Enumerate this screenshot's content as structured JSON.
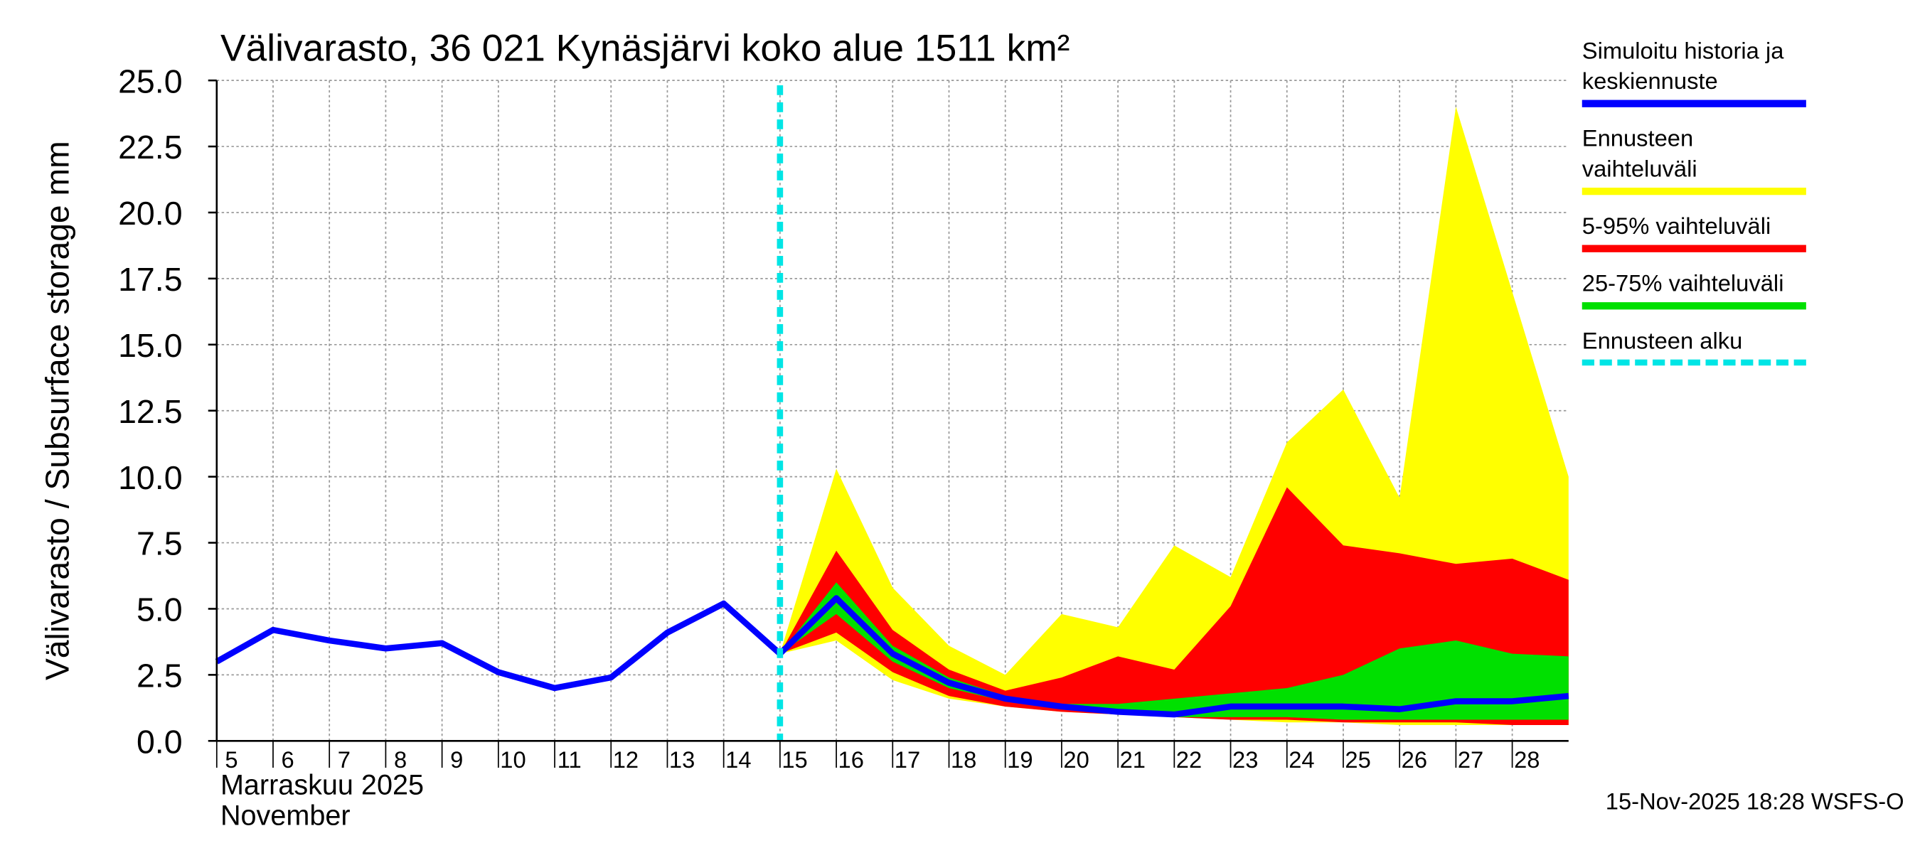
{
  "chart_data": {
    "type": "line",
    "title": "Välivarasto, 36 021 Kynäsjärvi koko alue 1511 km²",
    "y_label": "Välivarasto / Subsurface storage  mm",
    "x_label_fi": "Marraskuu 2025",
    "x_label_en": "November",
    "footer": "15-Nov-2025 18:28 WSFS-O",
    "grid": true,
    "x": [
      5,
      6,
      7,
      8,
      9,
      10,
      11,
      12,
      13,
      14,
      15,
      16,
      17,
      18,
      19,
      20,
      21,
      22,
      23,
      24,
      25,
      26,
      27,
      28,
      29
    ],
    "xlim": [
      5,
      29
    ],
    "xticks": [
      5,
      6,
      7,
      8,
      9,
      10,
      11,
      12,
      13,
      14,
      15,
      16,
      17,
      18,
      19,
      20,
      21,
      22,
      23,
      24,
      25,
      26,
      27,
      28
    ],
    "ylim": [
      0,
      25
    ],
    "yticks": [
      {
        "value": 0,
        "label": "0.0"
      },
      2.5,
      {
        "value": 5,
        "label": "5.0"
      },
      7.5,
      {
        "value": 10,
        "label": "10.0"
      },
      12.5,
      {
        "value": 15,
        "label": "15.0"
      },
      17.5,
      {
        "value": 20,
        "label": "20.0"
      },
      22.5,
      {
        "value": 25,
        "label": "25.0"
      }
    ],
    "series": [
      {
        "name": "Ennusteen vaihteluväli",
        "color": "#ffff00",
        "low": [
          null,
          null,
          null,
          null,
          null,
          null,
          null,
          null,
          null,
          null,
          3.3,
          3.8,
          2.3,
          1.6,
          1.3,
          1.1,
          1.0,
          0.9,
          0.8,
          0.7,
          0.7,
          0.6,
          0.6,
          0.6,
          0.6
        ],
        "high": [
          null,
          null,
          null,
          null,
          null,
          null,
          null,
          null,
          null,
          null,
          3.3,
          10.3,
          5.8,
          3.6,
          2.5,
          4.8,
          4.3,
          7.4,
          6.2,
          11.3,
          13.3,
          9.2,
          24.0,
          17.0,
          10.0
        ]
      },
      {
        "name": "5-95% vaihteluväli",
        "color": "#ff0000",
        "low": [
          null,
          null,
          null,
          null,
          null,
          null,
          null,
          null,
          null,
          null,
          3.3,
          4.1,
          2.6,
          1.7,
          1.3,
          1.1,
          1.0,
          0.9,
          0.8,
          0.8,
          0.7,
          0.7,
          0.7,
          0.6,
          0.6
        ],
        "high": [
          null,
          null,
          null,
          null,
          null,
          null,
          null,
          null,
          null,
          null,
          3.3,
          7.2,
          4.2,
          2.7,
          1.9,
          2.4,
          3.2,
          2.7,
          5.1,
          9.6,
          7.4,
          7.1,
          6.7,
          6.9,
          6.1
        ]
      },
      {
        "name": "25-75% vaihteluväli",
        "color": "#00e000",
        "low": [
          null,
          null,
          null,
          null,
          null,
          null,
          null,
          null,
          null,
          null,
          3.3,
          4.8,
          3.0,
          2.0,
          1.5,
          1.2,
          1.0,
          0.9,
          0.9,
          0.9,
          0.8,
          0.8,
          0.8,
          0.8,
          0.8
        ],
        "high": [
          null,
          null,
          null,
          null,
          null,
          null,
          null,
          null,
          null,
          null,
          3.3,
          6.0,
          3.6,
          2.4,
          1.7,
          1.4,
          1.4,
          1.6,
          1.8,
          2.0,
          2.5,
          3.5,
          3.8,
          3.3,
          3.2
        ]
      },
      {
        "name": "Simuloitu historia ja keskiennuste",
        "color": "#0000ff",
        "values": [
          3.0,
          4.2,
          3.8,
          3.5,
          3.7,
          2.6,
          2.0,
          2.4,
          4.1,
          5.2,
          3.3,
          5.4,
          3.3,
          2.2,
          1.6,
          1.3,
          1.1,
          1.0,
          1.3,
          1.3,
          1.3,
          1.2,
          1.5,
          1.5,
          1.7
        ]
      }
    ],
    "forecast_start": {
      "name": "Ennusteen alku",
      "x": 15,
      "color": "#00e5e5"
    },
    "legend_order": [
      3,
      0,
      1,
      2
    ]
  }
}
